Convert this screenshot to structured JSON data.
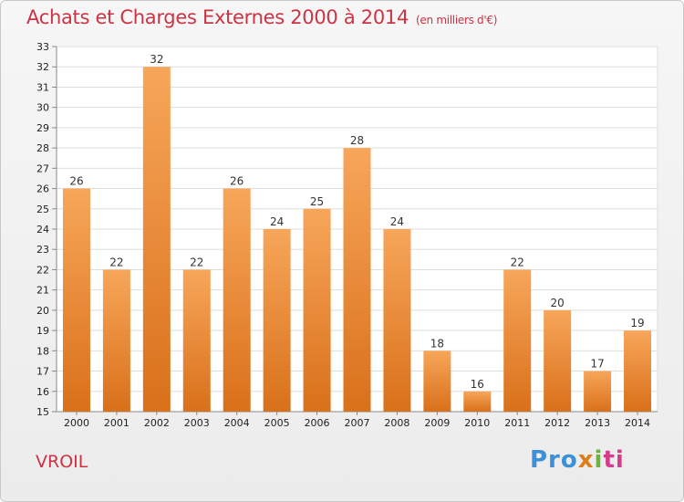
{
  "chart_data": {
    "type": "bar",
    "title": "Achats et Charges Externes 2000 à 2014",
    "subtitle": "(en milliers d'€)",
    "categories": [
      "2000",
      "2001",
      "2002",
      "2003",
      "2004",
      "2005",
      "2006",
      "2007",
      "2008",
      "2009",
      "2010",
      "2011",
      "2012",
      "2013",
      "2014"
    ],
    "values": [
      26,
      22,
      32,
      22,
      26,
      24,
      25,
      28,
      24,
      18,
      16,
      22,
      20,
      17,
      19
    ],
    "ylim": [
      15,
      33
    ],
    "yticks": [
      15,
      16,
      17,
      18,
      19,
      20,
      21,
      22,
      23,
      24,
      25,
      26,
      27,
      28,
      29,
      30,
      31,
      32,
      33
    ],
    "grid": true,
    "bar_color": "#f28c2a"
  },
  "footer": {
    "town": "VROIL",
    "logo": [
      "Pro",
      "x",
      "i",
      "ti"
    ]
  }
}
